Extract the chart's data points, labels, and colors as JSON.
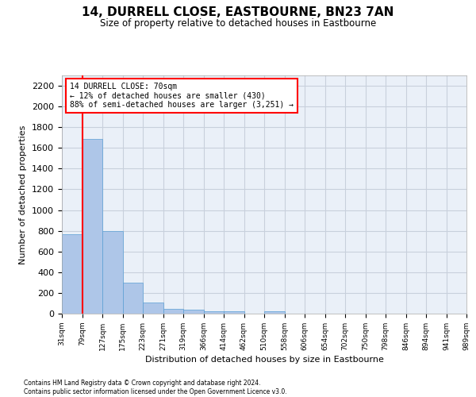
{
  "title": "14, DURRELL CLOSE, EASTBOURNE, BN23 7AN",
  "subtitle": "Size of property relative to detached houses in Eastbourne",
  "xlabel": "Distribution of detached houses by size in Eastbourne",
  "ylabel": "Number of detached properties",
  "bar_values": [
    770,
    1690,
    800,
    300,
    110,
    45,
    35,
    25,
    25,
    0,
    20,
    0,
    0,
    0,
    0,
    0,
    0,
    0,
    0,
    0
  ],
  "bar_color": "#aec6e8",
  "bar_edge_color": "#5a9fd4",
  "x_labels": [
    "31sqm",
    "79sqm",
    "127sqm",
    "175sqm",
    "223sqm",
    "271sqm",
    "319sqm",
    "366sqm",
    "414sqm",
    "462sqm",
    "510sqm",
    "558sqm",
    "606sqm",
    "654sqm",
    "702sqm",
    "750sqm",
    "798sqm",
    "846sqm",
    "894sqm",
    "941sqm",
    "989sqm"
  ],
  "ylim": [
    0,
    2300
  ],
  "yticks": [
    0,
    200,
    400,
    600,
    800,
    1000,
    1200,
    1400,
    1600,
    1800,
    2000,
    2200
  ],
  "grid_color": "#c8d0dc",
  "background_color": "#eaf0f8",
  "annotation_line1": "14 DURRELL CLOSE: 70sqm",
  "annotation_line2": "← 12% of detached houses are smaller (430)",
  "annotation_line3": "88% of semi-detached houses are larger (3,251) →",
  "red_line_x": 1.0,
  "footer_line1": "Contains HM Land Registry data © Crown copyright and database right 2024.",
  "footer_line2": "Contains public sector information licensed under the Open Government Licence v3.0."
}
